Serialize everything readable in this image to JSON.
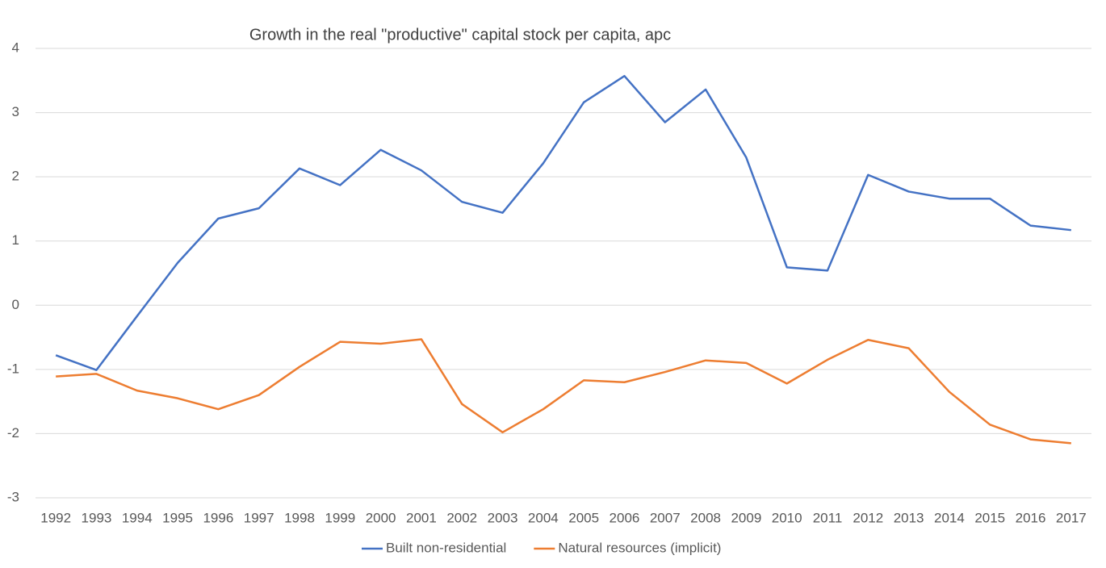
{
  "chart_data": {
    "type": "line",
    "title": "Growth in the real \"productive\" capital stock per capita, apc",
    "categories": [
      "1992",
      "1993",
      "1994",
      "1995",
      "1996",
      "1997",
      "1998",
      "1999",
      "2000",
      "2001",
      "2002",
      "2003",
      "2004",
      "2005",
      "2006",
      "2007",
      "2008",
      "2009",
      "2010",
      "2011",
      "2012",
      "2013",
      "2014",
      "2015",
      "2016",
      "2017"
    ],
    "series": [
      {
        "name": "Built non-residential",
        "color": "#4472c4",
        "values": [
          -0.78,
          -1.01,
          -0.17,
          0.66,
          1.35,
          1.51,
          2.13,
          1.87,
          2.42,
          2.1,
          1.61,
          1.44,
          2.21,
          3.16,
          3.57,
          2.85,
          3.36,
          2.3,
          0.59,
          0.54,
          2.03,
          1.77,
          1.66,
          1.66,
          1.24,
          1.17
        ]
      },
      {
        "name": "Natural resources (implicit)",
        "color": "#ed7d31",
        "values": [
          -1.11,
          -1.07,
          -1.33,
          -1.45,
          -1.62,
          -1.4,
          -0.96,
          -0.57,
          -0.6,
          -0.53,
          -1.54,
          -1.98,
          -1.62,
          -1.17,
          -1.2,
          -1.04,
          -0.86,
          -0.9,
          -1.22,
          -0.85,
          -0.54,
          -0.67,
          -1.35,
          -1.86,
          -2.09,
          -2.15
        ]
      }
    ],
    "ylim": [
      -3,
      4
    ],
    "yticks": [
      -3,
      -2,
      -1,
      0,
      1,
      2,
      3,
      4
    ],
    "grid": true,
    "legend": "bottom"
  }
}
